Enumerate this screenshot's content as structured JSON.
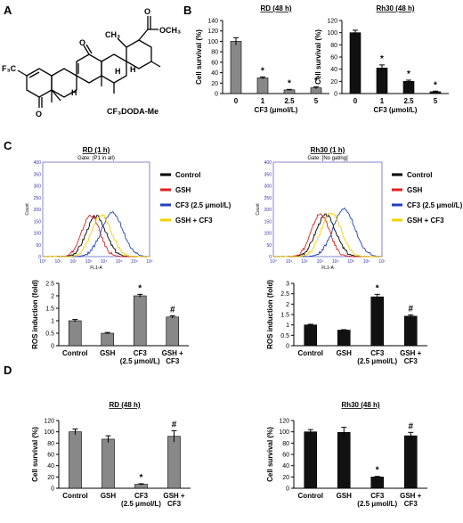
{
  "panels": {
    "A": "A",
    "B": "B",
    "C": "C",
    "D": "D"
  },
  "structure": {
    "name": "CF₃DODA-Me",
    "labels": [
      "CH₃",
      "OCH₃",
      "O",
      "O",
      "O",
      "F₃C",
      "H",
      "H",
      "H"
    ]
  },
  "chart_data": [
    {
      "id": "B-RD",
      "type": "bar",
      "title": "RD (48 h)",
      "xlabel": "CF3 (μmol/L)",
      "ylabel": "Cell survival (%)",
      "categories": [
        "0",
        "1",
        "2.5",
        "5"
      ],
      "values": [
        100,
        30,
        7,
        11
      ],
      "errors": [
        7,
        2,
        1,
        2
      ],
      "annotations": [
        "",
        "*",
        "*",
        "*"
      ],
      "ylim": [
        0,
        140
      ],
      "yticks": [
        0,
        20,
        40,
        60,
        80,
        100,
        120,
        140
      ],
      "color": "#888888"
    },
    {
      "id": "B-Rh30",
      "type": "bar",
      "title": "Rh30 (48 h)",
      "xlabel": "CF3 (μmol/L)",
      "ylabel": "Cell survival (%)",
      "categories": [
        "0",
        "1",
        "2.5",
        "5"
      ],
      "values": [
        100,
        42,
        20,
        3
      ],
      "errors": [
        4,
        5,
        2,
        1
      ],
      "annotations": [
        "",
        "*",
        "*",
        "*"
      ],
      "ylim": [
        0,
        120
      ],
      "yticks": [
        0,
        20,
        40,
        60,
        80,
        100,
        120
      ],
      "color": "#111111"
    },
    {
      "id": "C-RD-hist",
      "type": "line",
      "title": "RD (1 h)",
      "gate": "Gate: (P1 in all)",
      "xlabel": "FL1-A",
      "ylabel": "Count",
      "yticks": [
        0,
        50,
        100,
        150,
        200,
        250,
        300,
        350,
        400
      ],
      "xticks": [
        "10⁰",
        "10¹",
        "10²",
        "10³",
        "10⁴",
        "10⁵",
        "10⁶",
        "10⁷"
      ],
      "ylim": [
        0,
        400
      ],
      "xlim": [
        1,
        7
      ],
      "series": [
        {
          "name": "Control",
          "color": "#000000",
          "peak_x": 4.0,
          "peak_y": 170,
          "width": 0.55
        },
        {
          "name": "GSH",
          "color": "#e02020",
          "peak_x": 3.7,
          "peak_y": 175,
          "width": 0.5
        },
        {
          "name": "CF3 (2.5 μmol/L)",
          "color": "#2040c0",
          "peak_x": 4.9,
          "peak_y": 185,
          "width": 0.6
        },
        {
          "name": "GSH + CF3",
          "color": "#f2d200",
          "peak_x": 4.3,
          "peak_y": 175,
          "width": 0.55
        }
      ]
    },
    {
      "id": "C-Rh30-hist",
      "type": "line",
      "title": "Rh30 (1 h)",
      "gate": "Gate: [No gating]",
      "xlabel": "FL1-A",
      "ylabel": "Count",
      "yticks": [
        0,
        50,
        100,
        150,
        200,
        250,
        300,
        350,
        400
      ],
      "xticks": [
        "10⁰",
        "10¹",
        "10²",
        "10³",
        "10⁴",
        "10⁵",
        "10⁶",
        "10⁷"
      ],
      "ylim": [
        0,
        400
      ],
      "xlim": [
        1,
        7
      ],
      "series": [
        {
          "name": "Control",
          "color": "#000000",
          "peak_x": 3.9,
          "peak_y": 175,
          "width": 0.55
        },
        {
          "name": "GSH",
          "color": "#e02020",
          "peak_x": 3.6,
          "peak_y": 180,
          "width": 0.5
        },
        {
          "name": "CF3 (2.5 μmol/L)",
          "color": "#2040c0",
          "peak_x": 4.9,
          "peak_y": 200,
          "width": 0.6
        },
        {
          "name": "GSH + CF3",
          "color": "#f2d200",
          "peak_x": 4.2,
          "peak_y": 185,
          "width": 0.55
        }
      ]
    },
    {
      "id": "C-RD-bar",
      "type": "bar",
      "xlabel": "",
      "ylabel": "ROS induction (fold)",
      "categories": [
        "Control",
        "GSH",
        "CF3 (2.5 μmol/L)",
        "GSH + CF3"
      ],
      "values": [
        1.0,
        0.5,
        2.0,
        1.15
      ],
      "errors": [
        0.05,
        0.03,
        0.06,
        0.05
      ],
      "annotations": [
        "",
        "",
        "*",
        "#"
      ],
      "ylim": [
        0,
        2.5
      ],
      "yticks": [
        0,
        0.5,
        1,
        1.5,
        2,
        2.5
      ],
      "color": "#888888"
    },
    {
      "id": "C-Rh30-bar",
      "type": "bar",
      "xlabel": "",
      "ylabel": "ROS induction (fold)",
      "categories": [
        "Control",
        "GSH",
        "CF3 (2.5 μmol/L)",
        "GSH + CF3"
      ],
      "values": [
        1.0,
        0.75,
        2.35,
        1.42
      ],
      "errors": [
        0.03,
        0.02,
        0.12,
        0.06
      ],
      "annotations": [
        "",
        "",
        "*",
        "#"
      ],
      "ylim": [
        0,
        3
      ],
      "yticks": [
        0,
        0.5,
        1,
        1.5,
        2,
        2.5,
        3
      ],
      "color": "#111111"
    },
    {
      "id": "D-RD",
      "type": "bar",
      "title": "RD (48 h)",
      "xlabel": "",
      "ylabel": "Cell survival (%)",
      "categories": [
        "Control",
        "GSH",
        "CF3 (2.5 μmol/L)",
        "GSH + CF3"
      ],
      "values": [
        100,
        87,
        7,
        92
      ],
      "errors": [
        5,
        6,
        1,
        10
      ],
      "annotations": [
        "",
        "",
        "*",
        "#"
      ],
      "ylim": [
        0,
        120
      ],
      "yticks": [
        0,
        20,
        40,
        60,
        80,
        100,
        120
      ],
      "color": "#888888"
    },
    {
      "id": "D-Rh30",
      "type": "bar",
      "title": "Rh30 (48 h)",
      "xlabel": "",
      "ylabel": "Cell survival (%)",
      "categories": [
        "Control",
        "GSH",
        "CF3 (2.5 μmol/L)",
        "GSH + CF3"
      ],
      "values": [
        100,
        99,
        20,
        93
      ],
      "errors": [
        4,
        9,
        1,
        6
      ],
      "annotations": [
        "",
        "",
        "*",
        "#"
      ],
      "ylim": [
        0,
        120
      ],
      "yticks": [
        0,
        20,
        40,
        60,
        80,
        100,
        120
      ],
      "color": "#111111"
    }
  ]
}
